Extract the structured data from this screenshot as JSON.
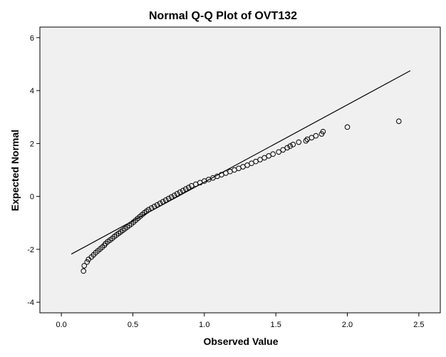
{
  "chart_data": {
    "type": "scatter",
    "title": "Normal Q-Q Plot of OVT132",
    "xlabel": "Observed Value",
    "ylabel": "Expected Normal",
    "xlim": [
      -0.15,
      2.65
    ],
    "ylim": [
      -4.4,
      6.4
    ],
    "x_ticks": [
      "0.0",
      "0.5",
      "1.0",
      "1.5",
      "2.0",
      "2.5"
    ],
    "x_tick_values": [
      0.0,
      0.5,
      1.0,
      1.5,
      2.0,
      2.5
    ],
    "y_ticks": [
      "6",
      "4",
      "2",
      "0",
      "-2",
      "-4"
    ],
    "y_tick_values": [
      6,
      4,
      2,
      0,
      -2,
      -4
    ],
    "plot_background": "#f0f0f0",
    "marker_color": "#000000",
    "line_color": "#000000",
    "grid": false,
    "reference_line": {
      "x": [
        0.07,
        2.44
      ],
      "y": [
        -2.18,
        4.75
      ]
    },
    "points": [
      {
        "x": 0.155,
        "y": -2.82
      },
      {
        "x": 0.16,
        "y": -2.62
      },
      {
        "x": 0.18,
        "y": -2.48
      },
      {
        "x": 0.19,
        "y": -2.38
      },
      {
        "x": 0.21,
        "y": -2.29
      },
      {
        "x": 0.225,
        "y": -2.21
      },
      {
        "x": 0.24,
        "y": -2.13
      },
      {
        "x": 0.255,
        "y": -2.06
      },
      {
        "x": 0.27,
        "y": -1.99
      },
      {
        "x": 0.285,
        "y": -1.92
      },
      {
        "x": 0.3,
        "y": -1.85
      },
      {
        "x": 0.31,
        "y": -1.78
      },
      {
        "x": 0.325,
        "y": -1.71
      },
      {
        "x": 0.34,
        "y": -1.65
      },
      {
        "x": 0.355,
        "y": -1.59
      },
      {
        "x": 0.37,
        "y": -1.52
      },
      {
        "x": 0.385,
        "y": -1.46
      },
      {
        "x": 0.4,
        "y": -1.4
      },
      {
        "x": 0.415,
        "y": -1.34
      },
      {
        "x": 0.43,
        "y": -1.28
      },
      {
        "x": 0.445,
        "y": -1.22
      },
      {
        "x": 0.46,
        "y": -1.16
      },
      {
        "x": 0.475,
        "y": -1.1
      },
      {
        "x": 0.49,
        "y": -1.04
      },
      {
        "x": 0.505,
        "y": -0.97
      },
      {
        "x": 0.52,
        "y": -0.9
      },
      {
        "x": 0.535,
        "y": -0.83
      },
      {
        "x": 0.55,
        "y": -0.76
      },
      {
        "x": 0.565,
        "y": -0.69
      },
      {
        "x": 0.58,
        "y": -0.62
      },
      {
        "x": 0.595,
        "y": -0.56
      },
      {
        "x": 0.61,
        "y": -0.5
      },
      {
        "x": 0.63,
        "y": -0.44
      },
      {
        "x": 0.65,
        "y": -0.38
      },
      {
        "x": 0.67,
        "y": -0.32
      },
      {
        "x": 0.69,
        "y": -0.26
      },
      {
        "x": 0.71,
        "y": -0.2
      },
      {
        "x": 0.73,
        "y": -0.14
      },
      {
        "x": 0.75,
        "y": -0.08
      },
      {
        "x": 0.77,
        "y": -0.02
      },
      {
        "x": 0.79,
        "y": 0.04
      },
      {
        "x": 0.81,
        "y": 0.1
      },
      {
        "x": 0.83,
        "y": 0.16
      },
      {
        "x": 0.85,
        "y": 0.22
      },
      {
        "x": 0.87,
        "y": 0.28
      },
      {
        "x": 0.89,
        "y": 0.34
      },
      {
        "x": 0.91,
        "y": 0.4
      },
      {
        "x": 0.94,
        "y": 0.46
      },
      {
        "x": 0.97,
        "y": 0.52
      },
      {
        "x": 1.0,
        "y": 0.58
      },
      {
        "x": 1.03,
        "y": 0.64
      },
      {
        "x": 1.06,
        "y": 0.7
      },
      {
        "x": 1.09,
        "y": 0.76
      },
      {
        "x": 1.12,
        "y": 0.82
      },
      {
        "x": 1.15,
        "y": 0.88
      },
      {
        "x": 1.18,
        "y": 0.94
      },
      {
        "x": 1.21,
        "y": 1.0
      },
      {
        "x": 1.24,
        "y": 1.06
      },
      {
        "x": 1.27,
        "y": 1.12
      },
      {
        "x": 1.3,
        "y": 1.18
      },
      {
        "x": 1.33,
        "y": 1.25
      },
      {
        "x": 1.36,
        "y": 1.32
      },
      {
        "x": 1.39,
        "y": 1.39
      },
      {
        "x": 1.42,
        "y": 1.46
      },
      {
        "x": 1.45,
        "y": 1.53
      },
      {
        "x": 1.48,
        "y": 1.6
      },
      {
        "x": 1.52,
        "y": 1.68
      },
      {
        "x": 1.55,
        "y": 1.76
      },
      {
        "x": 1.58,
        "y": 1.84
      },
      {
        "x": 1.6,
        "y": 1.9
      },
      {
        "x": 1.62,
        "y": 1.96
      },
      {
        "x": 1.66,
        "y": 2.05
      },
      {
        "x": 1.71,
        "y": 2.1
      },
      {
        "x": 1.72,
        "y": 2.16
      },
      {
        "x": 1.75,
        "y": 2.22
      },
      {
        "x": 1.78,
        "y": 2.29
      },
      {
        "x": 1.82,
        "y": 2.36
      },
      {
        "x": 1.83,
        "y": 2.45
      },
      {
        "x": 2.0,
        "y": 2.62
      },
      {
        "x": 2.36,
        "y": 2.84
      }
    ]
  }
}
